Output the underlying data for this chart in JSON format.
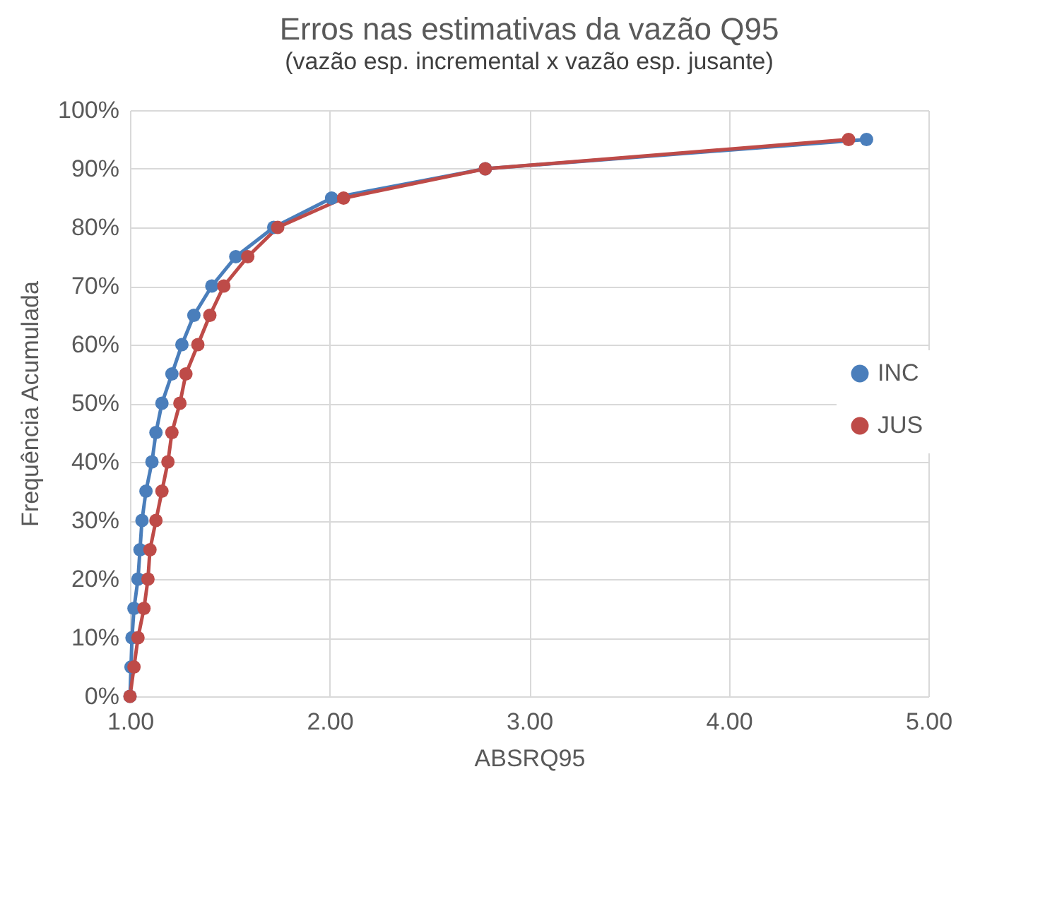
{
  "chart_data": {
    "type": "line",
    "title": "Erros nas estimativas da vazão Q95",
    "subtitle": "(vazão esp. incremental x vazão esp. jusante)",
    "xlabel": "ABSRQ95",
    "ylabel": "Frequência Acumulada",
    "xlim": [
      1,
      5
    ],
    "xticks": [
      {
        "value": 1,
        "label": "1.00"
      },
      {
        "value": 2,
        "label": "2.00"
      },
      {
        "value": 3,
        "label": "3.00"
      },
      {
        "value": 4,
        "label": "4.00"
      },
      {
        "value": 5,
        "label": "5.00"
      }
    ],
    "ylim": [
      0,
      100
    ],
    "yticks": [
      {
        "value": 0,
        "label": "0%"
      },
      {
        "value": 10,
        "label": "10%"
      },
      {
        "value": 20,
        "label": "20%"
      },
      {
        "value": 30,
        "label": "30%"
      },
      {
        "value": 40,
        "label": "40%"
      },
      {
        "value": 50,
        "label": "50%"
      },
      {
        "value": 60,
        "label": "60%"
      },
      {
        "value": 70,
        "label": "70%"
      },
      {
        "value": 80,
        "label": "80%"
      },
      {
        "value": 90,
        "label": "90%"
      },
      {
        "value": 100,
        "label": "100%"
      }
    ],
    "grid": true,
    "legend": "right",
    "marker": "circle",
    "line_style": "solid",
    "series": [
      {
        "name": "INC",
        "color": "#4a7ebb",
        "x": [
          1.0,
          1.005,
          1.01,
          1.02,
          1.04,
          1.05,
          1.06,
          1.08,
          1.11,
          1.13,
          1.16,
          1.21,
          1.26,
          1.32,
          1.41,
          1.53,
          1.72,
          2.01,
          2.78,
          4.69
        ],
        "values": [
          0,
          5,
          10,
          15,
          20,
          25,
          30,
          35,
          40,
          45,
          50,
          55,
          60,
          65,
          70,
          75,
          80,
          85,
          90,
          95
        ]
      },
      {
        "name": "JUS",
        "color": "#be4b48",
        "x": [
          1.0,
          1.02,
          1.04,
          1.07,
          1.09,
          1.1,
          1.13,
          1.16,
          1.19,
          1.21,
          1.25,
          1.28,
          1.34,
          1.4,
          1.47,
          1.59,
          1.74,
          2.07,
          2.78,
          4.6
        ],
        "values": [
          0,
          5,
          10,
          15,
          20,
          25,
          30,
          35,
          40,
          45,
          50,
          55,
          60,
          65,
          70,
          75,
          80,
          85,
          90,
          95
        ]
      }
    ]
  }
}
